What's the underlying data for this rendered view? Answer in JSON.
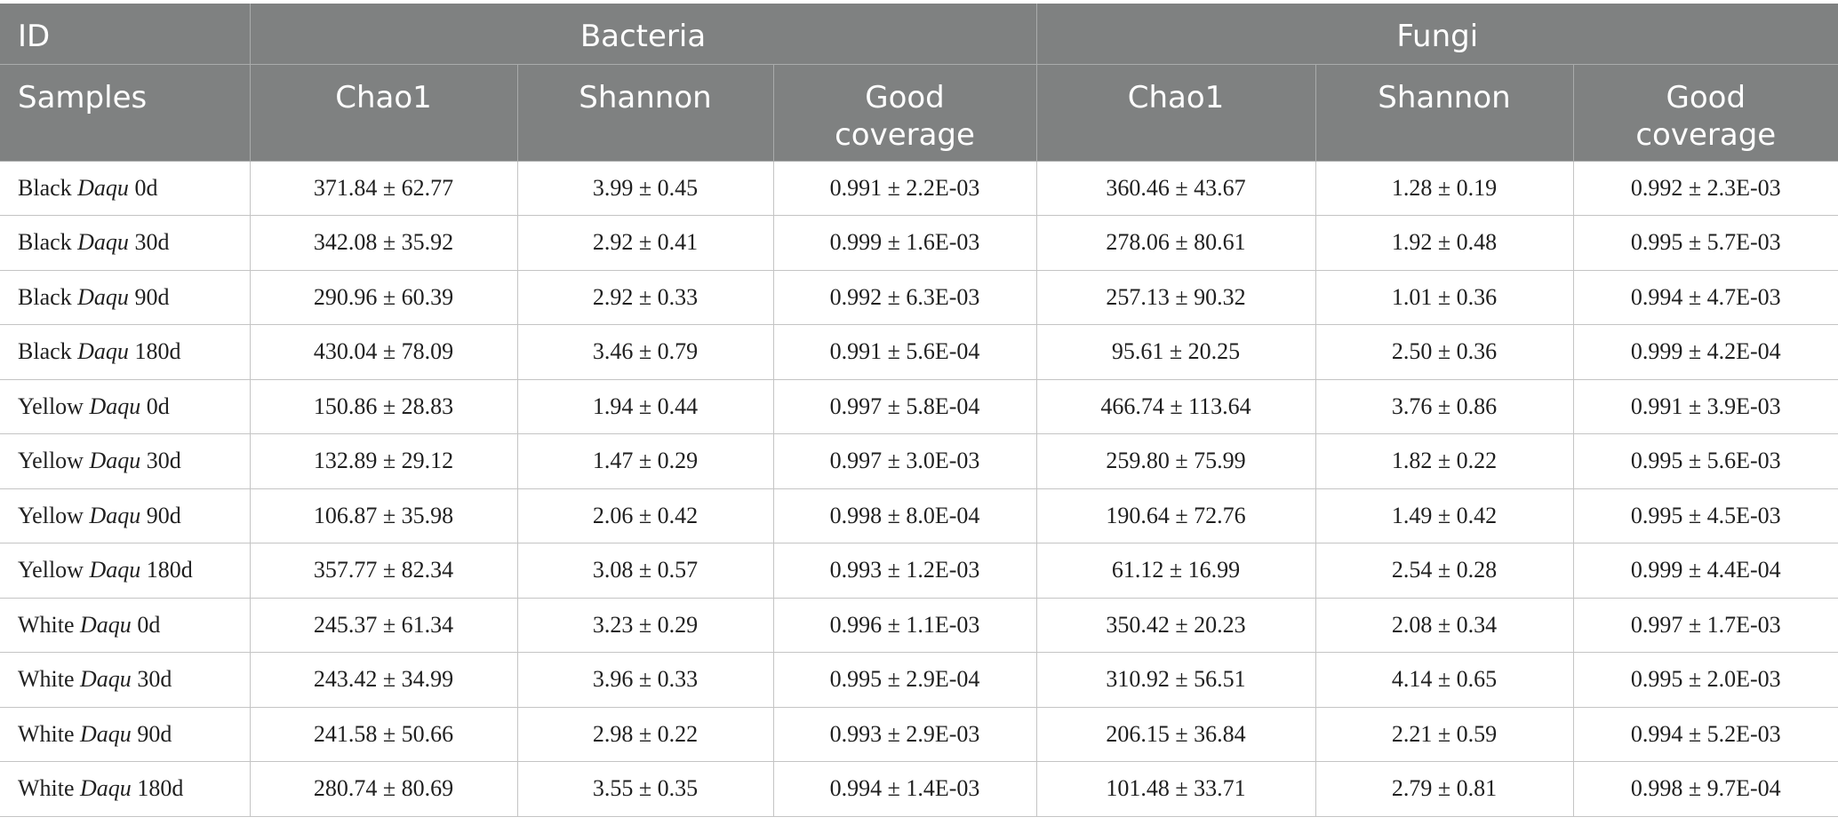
{
  "header": {
    "row1": [
      "ID",
      "Bacteria",
      "Fungi"
    ],
    "row2": [
      "Samples",
      "Chao1",
      "Shannon",
      "Good\ncoverage",
      "Chao1",
      "Shannon",
      "Good\ncoverage"
    ]
  },
  "rows": [
    {
      "pre": "Black ",
      "it": "Daqu",
      "post": " 0d",
      "cells": [
        "371.84 ± 62.77",
        "3.99 ± 0.45",
        "0.991 ± 2.2E-03",
        "360.46 ± 43.67",
        "1.28 ± 0.19",
        "0.992 ± 2.3E-03"
      ]
    },
    {
      "pre": "Black ",
      "it": "Daqu",
      "post": " 30d",
      "cells": [
        "342.08 ± 35.92",
        "2.92 ± 0.41",
        "0.999 ± 1.6E-03",
        "278.06 ± 80.61",
        "1.92 ± 0.48",
        "0.995 ± 5.7E-03"
      ]
    },
    {
      "pre": "Black ",
      "it": "Daqu",
      "post": " 90d",
      "cells": [
        "290.96 ± 60.39",
        "2.92 ± 0.33",
        "0.992 ± 6.3E-03",
        "257.13 ± 90.32",
        "1.01 ± 0.36",
        "0.994 ± 4.7E-03"
      ]
    },
    {
      "pre": "Black ",
      "it": "Daqu",
      "post": " 180d",
      "cells": [
        "430.04 ± 78.09",
        "3.46 ± 0.79",
        "0.991 ± 5.6E-04",
        "95.61 ± 20.25",
        "2.50 ± 0.36",
        "0.999 ± 4.2E-04"
      ]
    },
    {
      "pre": "Yellow ",
      "it": "Daqu",
      "post": " 0d",
      "cells": [
        "150.86 ± 28.83",
        "1.94 ± 0.44",
        "0.997 ± 5.8E-04",
        "466.74 ± 113.64",
        "3.76 ± 0.86",
        "0.991 ± 3.9E-03"
      ]
    },
    {
      "pre": "Yellow ",
      "it": "Daqu",
      "post": " 30d",
      "cells": [
        "132.89 ± 29.12",
        "1.47 ± 0.29",
        "0.997 ± 3.0E-03",
        "259.80 ± 75.99",
        "1.82 ± 0.22",
        "0.995 ± 5.6E-03"
      ]
    },
    {
      "pre": "Yellow ",
      "it": "Daqu",
      "post": " 90d",
      "cells": [
        "106.87 ± 35.98",
        "2.06 ± 0.42",
        "0.998 ± 8.0E-04",
        "190.64 ± 72.76",
        "1.49 ± 0.42",
        "0.995 ± 4.5E-03"
      ]
    },
    {
      "pre": "Yellow ",
      "it": "Daqu",
      "post": " 180d",
      "cells": [
        "357.77 ± 82.34",
        "3.08 ± 0.57",
        "0.993 ± 1.2E-03",
        "61.12 ± 16.99",
        "2.54 ± 0.28",
        "0.999 ± 4.4E-04"
      ]
    },
    {
      "pre": "White ",
      "it": "Daqu",
      "post": " 0d",
      "cells": [
        "245.37 ± 61.34",
        "3.23 ± 0.29",
        "0.996 ± 1.1E-03",
        "350.42 ± 20.23",
        "2.08 ± 0.34",
        "0.997 ± 1.7E-03"
      ]
    },
    {
      "pre": "White ",
      "it": "Daqu",
      "post": " 30d",
      "cells": [
        "243.42 ± 34.99",
        "3.96 ± 0.33",
        "0.995 ± 2.9E-04",
        "310.92 ± 56.51",
        "4.14 ± 0.65",
        "0.995 ± 2.0E-03"
      ]
    },
    {
      "pre": "White ",
      "it": "Daqu",
      "post": " 90d",
      "cells": [
        "241.58 ± 50.66",
        "2.98 ± 0.22",
        "0.993 ± 2.9E-03",
        "206.15 ± 36.84",
        "2.21 ± 0.59",
        "0.994 ± 5.2E-03"
      ]
    },
    {
      "pre": "White ",
      "it": "Daqu",
      "post": " 180d",
      "cells": [
        "280.74 ± 80.69",
        "3.55 ± 0.35",
        "0.994 ± 1.4E-03",
        "101.48 ± 33.71",
        "2.79 ± 0.81",
        "0.998 ± 9.7E-04"
      ]
    }
  ]
}
